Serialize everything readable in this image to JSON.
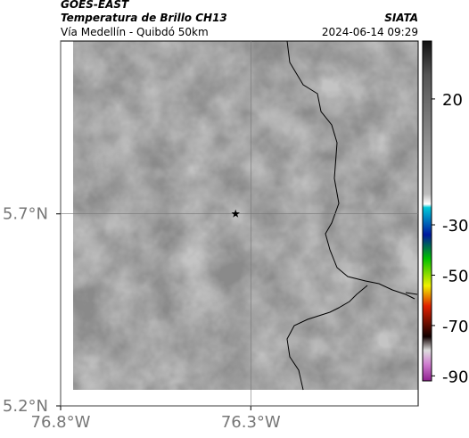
{
  "header": {
    "title": "GOES-EAST",
    "subtitle": "Temperatura de Brillo CH13",
    "region": "Vía Medellín - Quibdó 50km",
    "source": "SIATA",
    "datetime": "2024-06-14 09:29"
  },
  "map": {
    "xlim": [
      -76.8,
      -75.86
    ],
    "ylim": [
      5.2,
      6.15
    ],
    "xticks": [
      {
        "value": -76.8,
        "label": "76.8°W"
      },
      {
        "value": -76.3,
        "label": "76.3°W"
      }
    ],
    "yticks": [
      {
        "value": 5.7,
        "label": "5.7°N"
      },
      {
        "value": 5.2,
        "label": "5.2°N"
      }
    ],
    "marker": {
      "lon": -76.34,
      "lat": 5.7
    }
  },
  "colorbar": {
    "range": [
      -92,
      43
    ],
    "ticks": [
      20,
      -30,
      -50,
      -70,
      -90
    ]
  }
}
